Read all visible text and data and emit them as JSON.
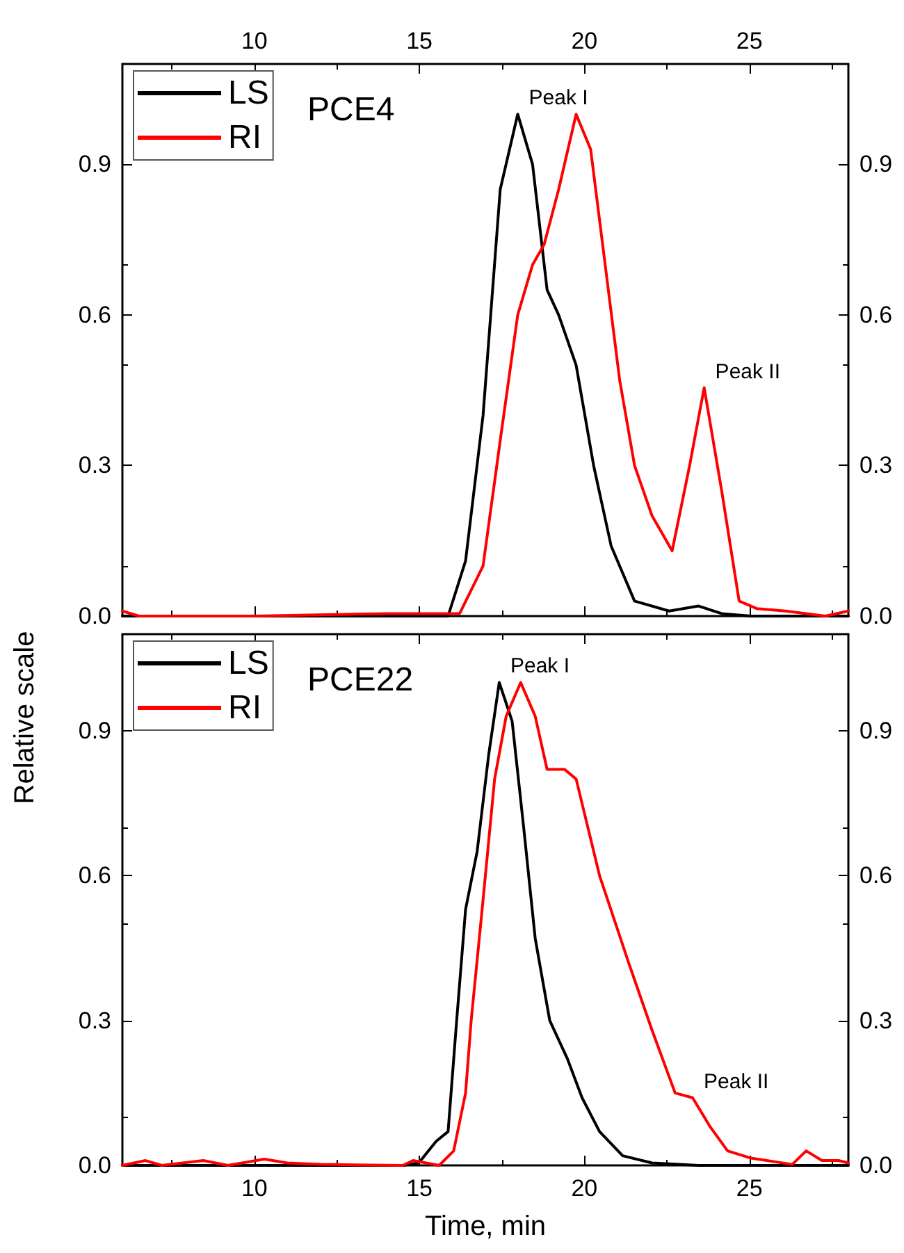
{
  "chart_data": [
    {
      "type": "line",
      "title": "PCE4",
      "legend": "top left",
      "marker": "none",
      "line_style": "solid",
      "grid": false,
      "xlim": [
        6,
        28
      ],
      "xticks": [
        10,
        15,
        20,
        25
      ],
      "ylim": [
        0,
        1.1
      ],
      "yticks": [
        {
          "value": 0,
          "label": "0.0"
        },
        {
          "value": 0.3,
          "label": "0.3"
        },
        {
          "value": 0.6,
          "label": "0.6"
        },
        {
          "value": 0.9,
          "label": "0.9"
        }
      ],
      "y2lim": [
        0,
        1.1
      ],
      "y2ticks": [
        {
          "value": 0,
          "label": "0.0"
        },
        {
          "value": 0.3,
          "label": "0.3"
        },
        {
          "value": 0.6,
          "label": "0.6"
        },
        {
          "value": 0.9,
          "label": "0.9"
        }
      ],
      "annotations": [
        {
          "text": "Peak I",
          "x": 17.98,
          "y": 1.0
        },
        {
          "text": "Peak II",
          "x": 23.63,
          "y": 0.455
        }
      ],
      "series": [
        {
          "name": "LS",
          "color": "#000000",
          "x": [
            6,
            15.87,
            16.4,
            16.93,
            17.45,
            17.98,
            18.43,
            18.87,
            19.22,
            19.75,
            20.28,
            20.81,
            21.52,
            22.57,
            23.46,
            24.16,
            25.05,
            28
          ],
          "values": [
            0,
            0,
            0.11,
            0.4,
            0.85,
            1.0,
            0.9,
            0.65,
            0.6,
            0.5,
            0.3,
            0.14,
            0.03,
            0.01,
            0.02,
            0.005,
            0,
            0
          ]
        },
        {
          "name": "RI",
          "color": "#ff0000",
          "x": [
            6,
            6.5,
            10,
            14,
            15.2,
            16.22,
            16.93,
            17.45,
            17.98,
            18.43,
            18.78,
            19.22,
            19.75,
            20.19,
            20.63,
            21.07,
            21.52,
            22.05,
            22.66,
            23.19,
            23.63,
            24.16,
            24.69,
            25.22,
            26.1,
            27.3,
            28
          ],
          "values": [
            0.01,
            0,
            0,
            0.005,
            0.005,
            0.005,
            0.1,
            0.35,
            0.6,
            0.7,
            0.74,
            0.85,
            1.0,
            0.93,
            0.7,
            0.47,
            0.3,
            0.2,
            0.13,
            0.3,
            0.455,
            0.25,
            0.03,
            0.015,
            0.01,
            0,
            0.01
          ]
        }
      ]
    },
    {
      "type": "line",
      "title": "PCE22",
      "legend": "top left",
      "marker": "none",
      "line_style": "solid",
      "grid": false,
      "xlabel": "Time, min",
      "ylabel": "Relative scale",
      "xlim": [
        6,
        28
      ],
      "xticks": [
        10,
        15,
        20,
        25
      ],
      "ylim": [
        0,
        1.1
      ],
      "yticks": [
        {
          "value": 0,
          "label": "0.0"
        },
        {
          "value": 0.3,
          "label": "0.3"
        },
        {
          "value": 0.6,
          "label": "0.6"
        },
        {
          "value": 0.9,
          "label": "0.9"
        }
      ],
      "y2lim": [
        0,
        1.1
      ],
      "y2ticks": [
        {
          "value": 0,
          "label": "0.0"
        },
        {
          "value": 0.3,
          "label": "0.3"
        },
        {
          "value": 0.6,
          "label": "0.6"
        },
        {
          "value": 0.9,
          "label": "0.9"
        }
      ],
      "annotations": [
        {
          "text": "Peak I",
          "x": 17.42,
          "y": 1.0
        },
        {
          "text": "Peak II",
          "x": 23.28,
          "y": 0.14
        }
      ],
      "series": [
        {
          "name": "LS",
          "color": "#000000",
          "x": [
            6,
            14.5,
            14.98,
            15.51,
            15.87,
            16.13,
            16.4,
            16.75,
            17.1,
            17.42,
            17.81,
            18.16,
            18.51,
            18.95,
            19.49,
            19.93,
            20.46,
            21.16,
            22.05,
            23.46,
            28
          ],
          "values": [
            0,
            0,
            0.005,
            0.05,
            0.07,
            0.3,
            0.53,
            0.65,
            0.85,
            1.0,
            0.92,
            0.7,
            0.47,
            0.3,
            0.22,
            0.14,
            0.07,
            0.02,
            0.005,
            0,
            0
          ]
        },
        {
          "name": "RI",
          "color": "#ff0000",
          "x": [
            6,
            6.7,
            7.2,
            8.45,
            9.2,
            10.3,
            11,
            12,
            14.5,
            14.81,
            15.6,
            16.04,
            16.4,
            16.57,
            16.93,
            17.28,
            17.63,
            18.07,
            18.51,
            18.87,
            19.4,
            19.75,
            20.46,
            21.34,
            22.05,
            22.75,
            23.28,
            23.81,
            24.34,
            25.05,
            26.3,
            26.72,
            27.2,
            27.7,
            28
          ],
          "values": [
            0,
            0.01,
            0,
            0.01,
            0,
            0.013,
            0.005,
            0.002,
            0,
            0.01,
            0,
            0.03,
            0.15,
            0.3,
            0.55,
            0.8,
            0.93,
            1.0,
            0.93,
            0.82,
            0.82,
            0.8,
            0.6,
            0.42,
            0.28,
            0.15,
            0.14,
            0.08,
            0.03,
            0.015,
            0.002,
            0.03,
            0.01,
            0.01,
            0.005
          ]
        }
      ]
    }
  ]
}
